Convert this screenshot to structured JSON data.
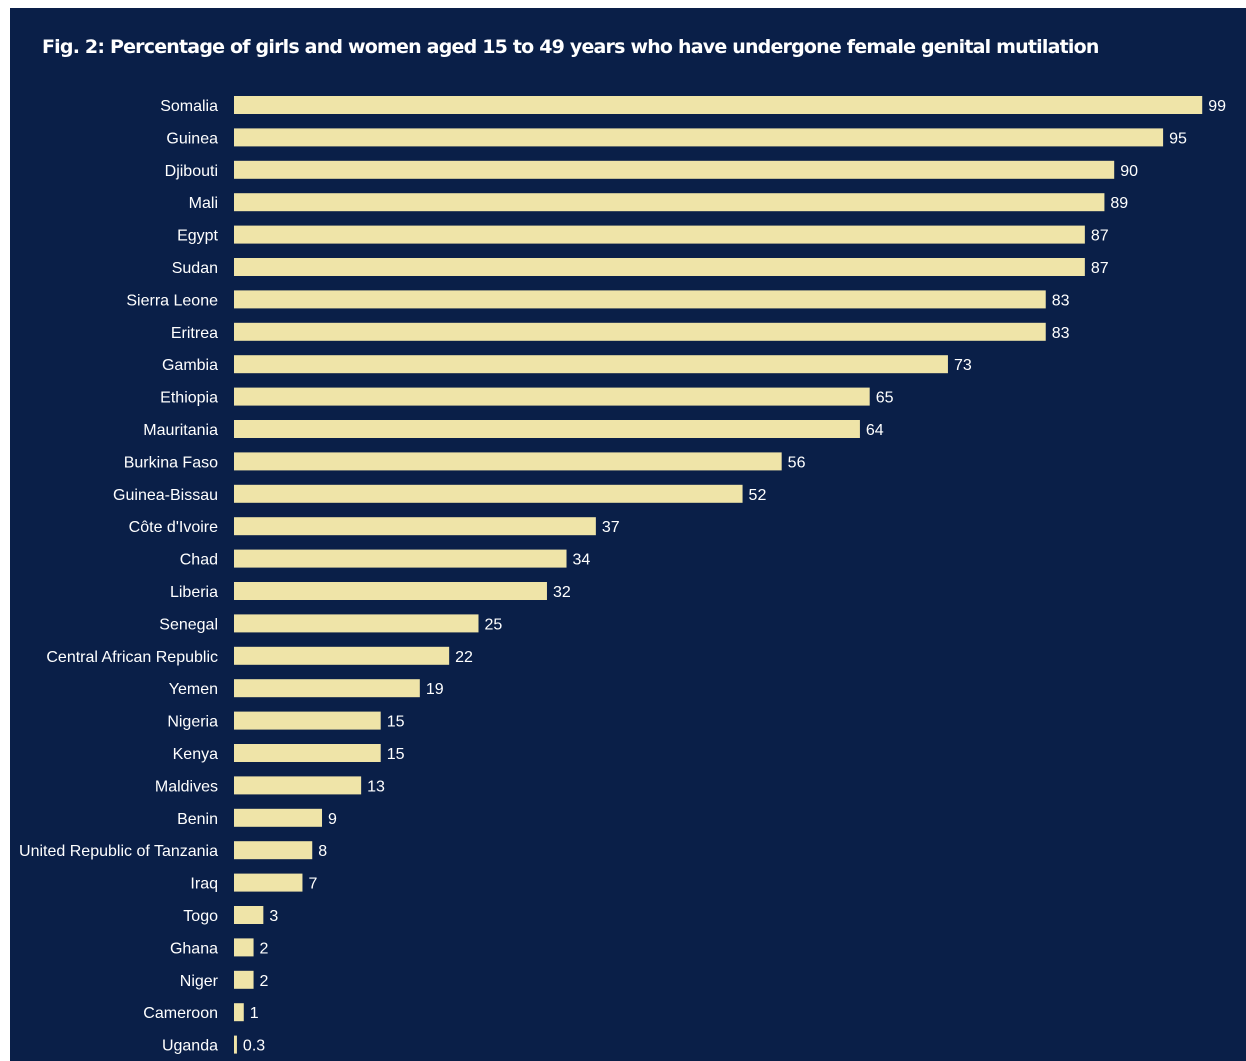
{
  "colors": {
    "background": "#0a1f48",
    "bar": "#efe4a8",
    "text": "#ffffff"
  },
  "chart_data": {
    "type": "bar",
    "orientation": "horizontal",
    "title": "Fig. 2: Percentage of girls and women aged 15 to 49 years who have undergone female genital mutilation",
    "categories": [
      "Somalia",
      "Guinea",
      "Djibouti",
      "Mali",
      "Egypt",
      "Sudan",
      "Sierra Leone",
      "Eritrea",
      "Gambia",
      "Ethiopia",
      "Mauritania",
      "Burkina Faso",
      "Guinea-Bissau",
      "Côte d'Ivoire",
      "Chad",
      "Liberia",
      "Senegal",
      "Central African Republic",
      "Yemen",
      "Nigeria",
      "Kenya",
      "Maldives",
      "Benin",
      "United Republic of Tanzania",
      "Iraq",
      "Togo",
      "Ghana",
      "Niger",
      "Cameroon",
      "Uganda"
    ],
    "values": [
      99,
      95,
      90,
      89,
      87,
      87,
      83,
      83,
      73,
      65,
      64,
      56,
      52,
      37,
      34,
      32,
      25,
      22,
      19,
      15,
      15,
      13,
      9,
      8,
      7,
      3,
      2,
      2,
      1,
      0.3
    ],
    "value_labels": [
      "99",
      "95",
      "90",
      "89",
      "87",
      "87",
      "83",
      "83",
      "73",
      "65",
      "64",
      "56",
      "52",
      "37",
      "34",
      "32",
      "25",
      "22",
      "19",
      "15",
      "15",
      "13",
      "9",
      "8",
      "7",
      "3",
      "2",
      "2",
      "1",
      "0.3"
    ],
    "xlim": [
      0,
      100
    ],
    "grid": false,
    "legend": false
  }
}
